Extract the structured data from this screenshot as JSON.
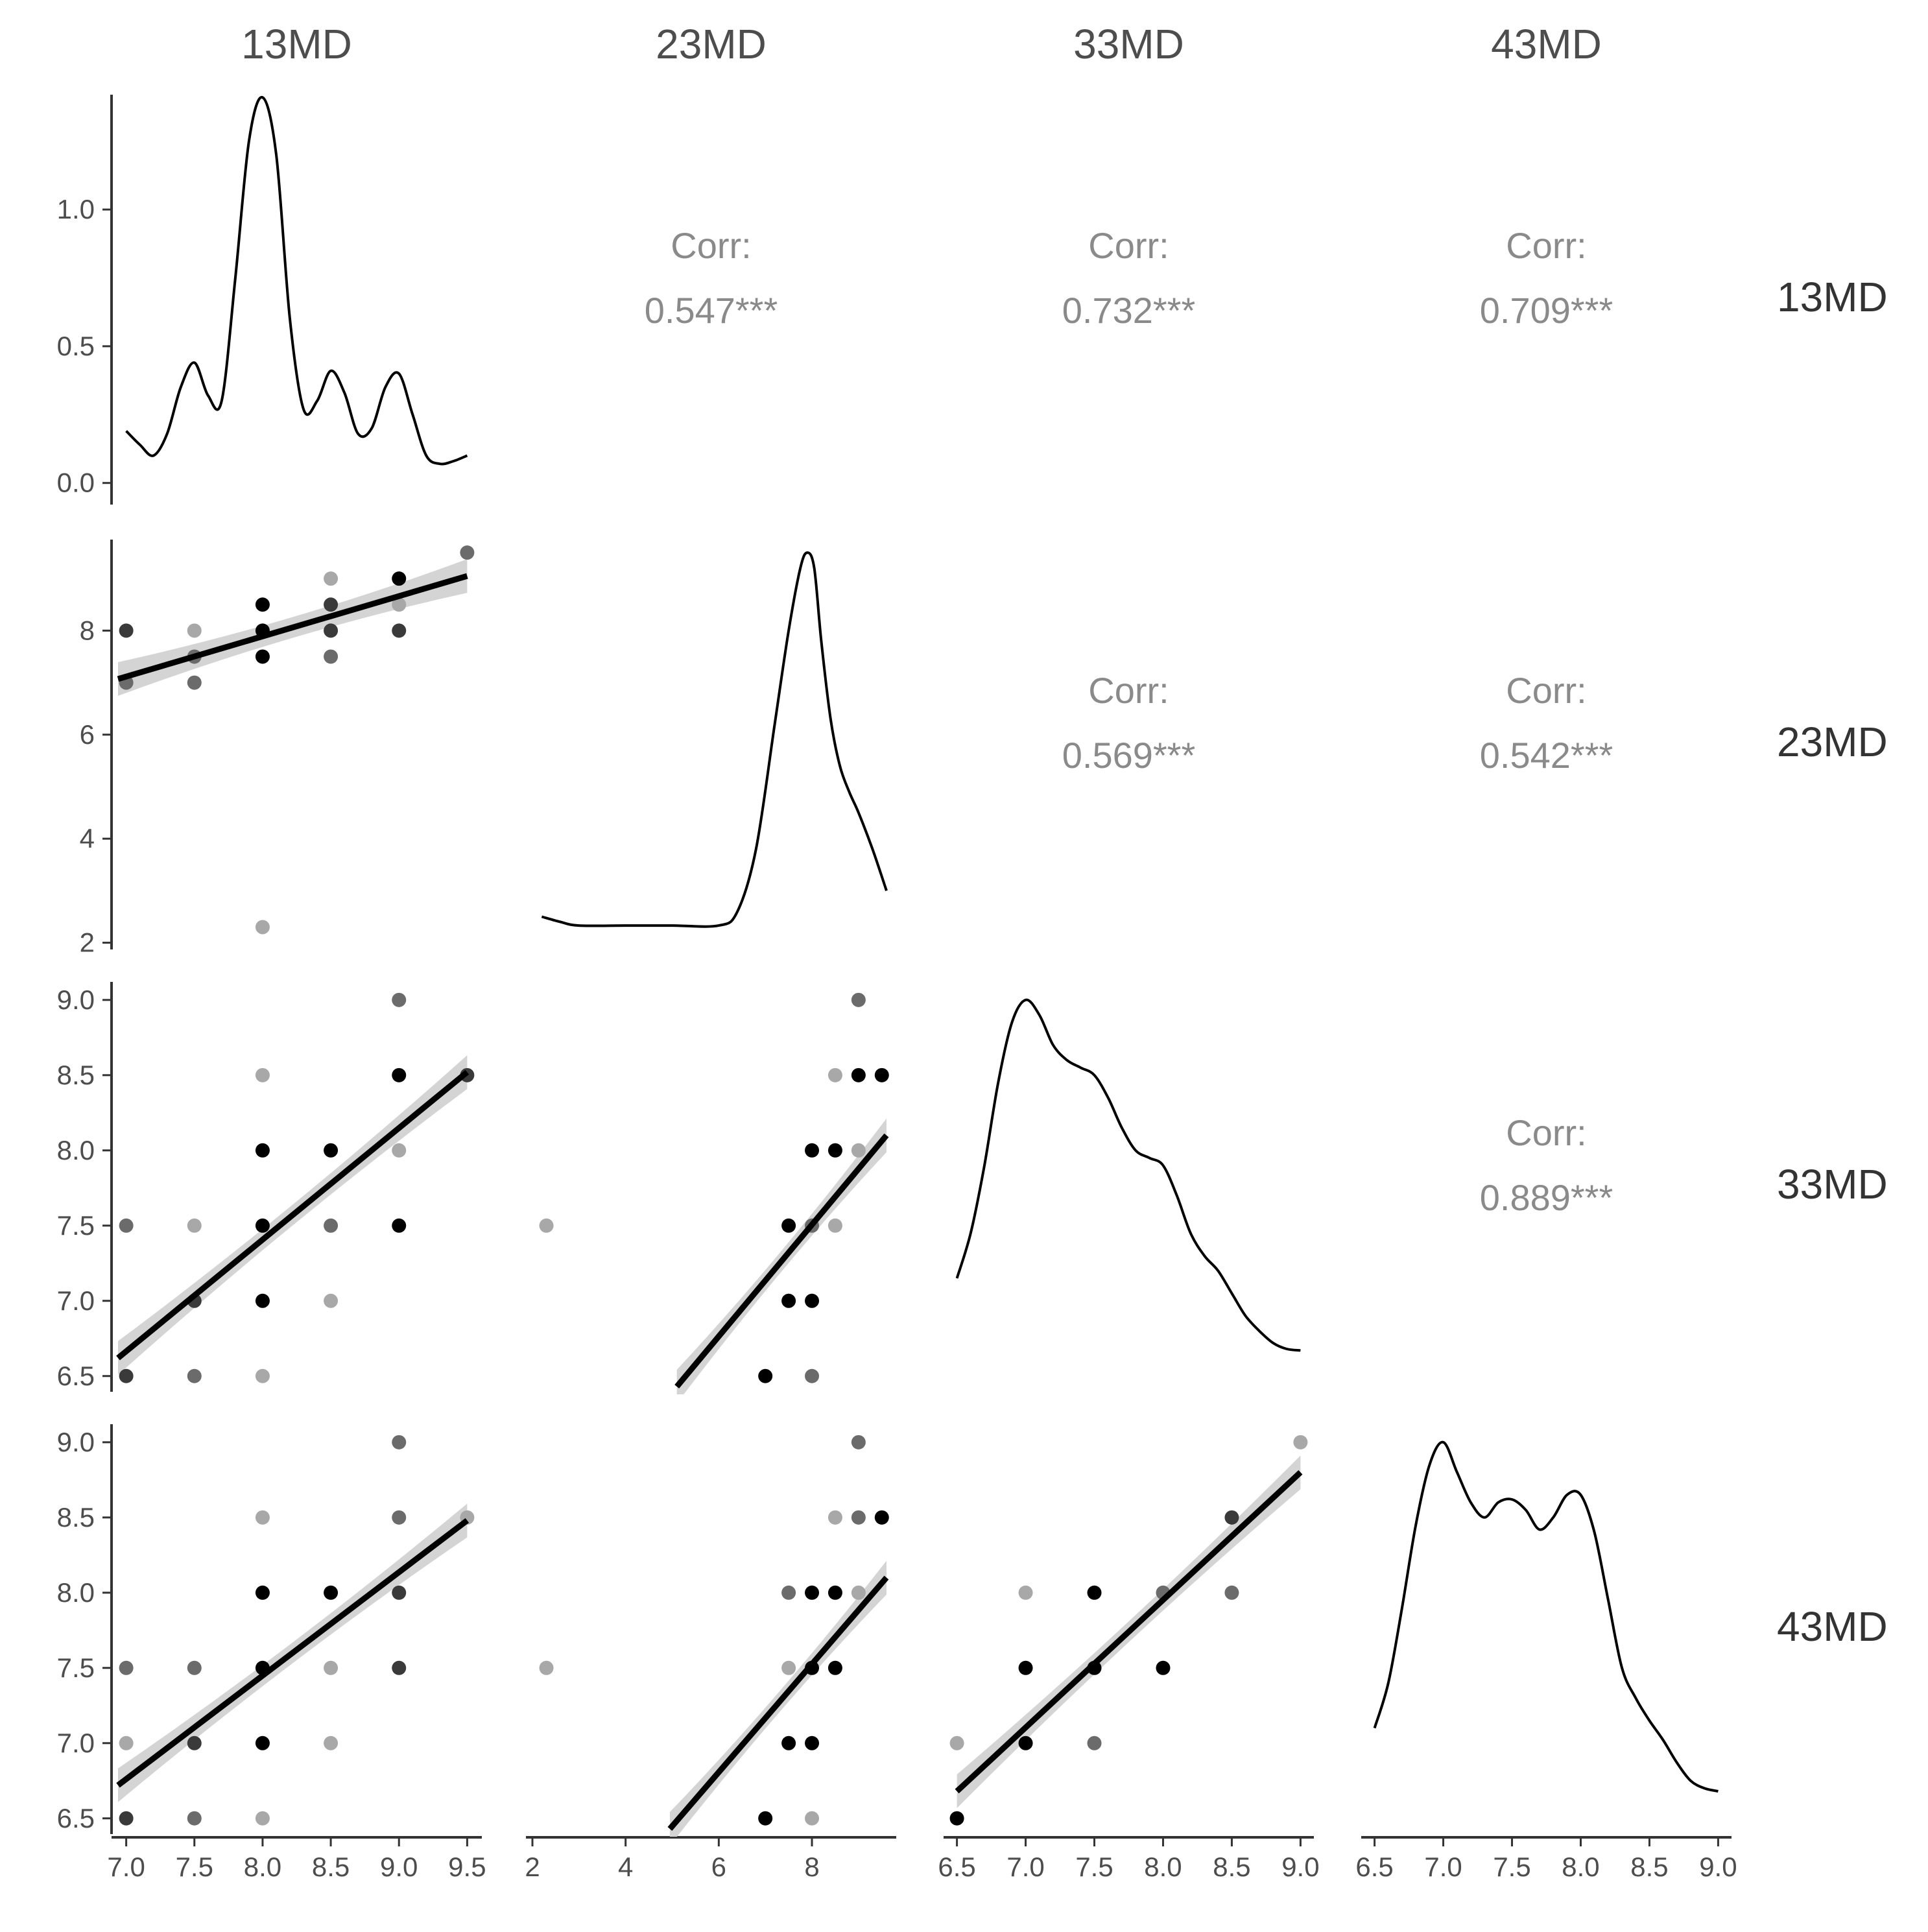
{
  "chart_data": {
    "type": "scatter-matrix",
    "variables": [
      "13MD",
      "23MD",
      "33MD",
      "43MD"
    ],
    "corr_label": "Corr:",
    "colors": {
      "line": "#000000",
      "ribbon": "#d4d4d4",
      "axis": "#333333",
      "text": "#4d4d4d",
      "corr": "#8a8a8a"
    },
    "axes": {
      "x": [
        {
          "range": [
            6.94,
            9.56
          ],
          "ticks": [
            7.0,
            7.5,
            8.0,
            8.5,
            9.0,
            9.5
          ],
          "tick_labels": [
            "7.0",
            "7.5",
            "8.0",
            "8.5",
            "9.0",
            "9.5"
          ]
        },
        {
          "range": [
            2.0,
            9.67
          ],
          "ticks": [
            2,
            4,
            6,
            8
          ],
          "tick_labels": [
            "2",
            "4",
            "6",
            "8"
          ]
        },
        {
          "range": [
            6.45,
            9.05
          ],
          "ticks": [
            6.5,
            7.0,
            7.5,
            8.0,
            8.5,
            9.0
          ],
          "tick_labels": [
            "6.5",
            "7.0",
            "7.5",
            "8.0",
            "8.5",
            "9.0"
          ]
        },
        {
          "range": [
            6.45,
            9.05
          ],
          "ticks": [
            6.5,
            7.0,
            7.5,
            8.0,
            8.5,
            9.0
          ],
          "tick_labels": [
            "6.5",
            "7.0",
            "7.5",
            "8.0",
            "8.5",
            "9.0"
          ]
        }
      ],
      "y": [
        {
          "range": [
            -0.06,
            1.42
          ],
          "ticks": [
            0.0,
            0.5,
            1.0
          ],
          "tick_labels": [
            "0.0",
            "0.5",
            "1.0"
          ]
        },
        {
          "range": [
            1.97,
            9.75
          ],
          "ticks": [
            2,
            4,
            6,
            8
          ],
          "tick_labels": [
            "2",
            "4",
            "6",
            "8"
          ]
        },
        {
          "range": [
            6.43,
            9.12
          ],
          "ticks": [
            6.5,
            7.0,
            7.5,
            8.0,
            8.5,
            9.0
          ],
          "tick_labels": [
            "6.5",
            "7.0",
            "7.5",
            "8.0",
            "8.5",
            "9.0"
          ]
        },
        {
          "range": [
            6.43,
            9.12
          ],
          "ticks": [
            6.5,
            7.0,
            7.5,
            8.0,
            8.5,
            9.0
          ],
          "tick_labels": [
            "6.5",
            "7.0",
            "7.5",
            "8.0",
            "8.5",
            "9.0"
          ]
        }
      ]
    },
    "correlations": [
      {
        "row": 0,
        "col": 1,
        "value": "0.547***"
      },
      {
        "row": 0,
        "col": 2,
        "value": "0.732***"
      },
      {
        "row": 0,
        "col": 3,
        "value": "0.709***"
      },
      {
        "row": 1,
        "col": 2,
        "value": "0.569***"
      },
      {
        "row": 1,
        "col": 3,
        "value": "0.542***"
      },
      {
        "row": 2,
        "col": 3,
        "value": "0.889***"
      }
    ],
    "densities": [
      {
        "var": "13MD",
        "x": [
          7.0,
          7.1,
          7.2,
          7.3,
          7.4,
          7.5,
          7.6,
          7.7,
          7.8,
          7.9,
          8.0,
          8.1,
          8.2,
          8.3,
          8.4,
          8.5,
          8.6,
          8.7,
          8.8,
          8.9,
          9.0,
          9.1,
          9.2,
          9.3,
          9.4,
          9.5
        ],
        "y": [
          0.19,
          0.14,
          0.1,
          0.18,
          0.35,
          0.44,
          0.32,
          0.3,
          0.75,
          1.25,
          1.41,
          1.2,
          0.6,
          0.27,
          0.3,
          0.41,
          0.33,
          0.18,
          0.2,
          0.35,
          0.4,
          0.25,
          0.1,
          0.07,
          0.08,
          0.1
        ]
      },
      {
        "var": "23MD",
        "x": [
          2.2,
          2.6,
          3.0,
          4.0,
          5.0,
          6.0,
          6.4,
          6.8,
          7.2,
          7.5,
          7.75,
          7.9,
          8.05,
          8.2,
          8.4,
          8.6,
          8.8,
          9.0,
          9.3,
          9.6
        ],
        "y": [
          2.5,
          2.4,
          2.33,
          2.33,
          2.33,
          2.33,
          2.6,
          3.8,
          6.2,
          8.0,
          9.2,
          9.5,
          9.2,
          7.8,
          6.3,
          5.4,
          4.9,
          4.5,
          3.8,
          3.0
        ]
      },
      {
        "var": "33MD",
        "x": [
          6.5,
          6.6,
          6.7,
          6.8,
          6.9,
          7.0,
          7.1,
          7.2,
          7.3,
          7.4,
          7.5,
          7.6,
          7.7,
          7.8,
          7.9,
          8.0,
          8.1,
          8.2,
          8.3,
          8.4,
          8.5,
          8.6,
          8.7,
          8.8,
          8.9,
          9.0
        ],
        "y": [
          7.15,
          7.45,
          7.9,
          8.45,
          8.85,
          9.0,
          8.9,
          8.7,
          8.6,
          8.55,
          8.5,
          8.35,
          8.15,
          8.0,
          7.95,
          7.9,
          7.7,
          7.45,
          7.3,
          7.2,
          7.05,
          6.9,
          6.8,
          6.72,
          6.68,
          6.67
        ]
      },
      {
        "var": "43MD",
        "x": [
          6.5,
          6.6,
          6.7,
          6.8,
          6.9,
          7.0,
          7.1,
          7.2,
          7.3,
          7.4,
          7.5,
          7.6,
          7.7,
          7.8,
          7.9,
          8.0,
          8.1,
          8.2,
          8.3,
          8.4,
          8.5,
          8.6,
          8.7,
          8.8,
          8.9,
          9.0
        ],
        "y": [
          7.1,
          7.4,
          7.9,
          8.45,
          8.85,
          9.0,
          8.8,
          8.6,
          8.5,
          8.6,
          8.62,
          8.55,
          8.42,
          8.5,
          8.65,
          8.65,
          8.4,
          7.95,
          7.5,
          7.3,
          7.15,
          7.02,
          6.87,
          6.75,
          6.7,
          6.68
        ]
      }
    ],
    "scatter": [
      {
        "row": 1,
        "col": 0,
        "fit": [
          [
            6.94,
            7.07
          ],
          [
            9.5,
            9.05
          ]
        ],
        "points": [
          [
            7.0,
            8.0,
            "dark"
          ],
          [
            7.0,
            7.0,
            "mid"
          ],
          [
            7.5,
            8.0,
            "light"
          ],
          [
            7.5,
            7.5,
            "mid"
          ],
          [
            7.5,
            7.0,
            "mid"
          ],
          [
            8.0,
            8.5,
            "black"
          ],
          [
            8.0,
            8.0,
            "black"
          ],
          [
            8.0,
            7.5,
            "black"
          ],
          [
            8.0,
            2.3,
            "light"
          ],
          [
            8.5,
            9.0,
            "light"
          ],
          [
            8.5,
            8.5,
            "dark"
          ],
          [
            8.5,
            8.0,
            "dark"
          ],
          [
            8.5,
            7.5,
            "mid"
          ],
          [
            9.0,
            9.0,
            "black"
          ],
          [
            9.0,
            8.5,
            "light"
          ],
          [
            9.0,
            8.0,
            "dark"
          ],
          [
            9.5,
            9.5,
            "mid"
          ]
        ]
      },
      {
        "row": 2,
        "col": 0,
        "fit": [
          [
            6.94,
            6.62
          ],
          [
            9.5,
            8.52
          ]
        ],
        "points": [
          [
            7.0,
            7.5,
            "mid"
          ],
          [
            7.0,
            6.5,
            "dark"
          ],
          [
            7.5,
            7.5,
            "light"
          ],
          [
            7.5,
            7.0,
            "dark"
          ],
          [
            7.5,
            6.5,
            "mid"
          ],
          [
            8.0,
            8.5,
            "light"
          ],
          [
            8.0,
            8.0,
            "black"
          ],
          [
            8.0,
            7.5,
            "black"
          ],
          [
            8.0,
            7.0,
            "black"
          ],
          [
            8.0,
            6.5,
            "light"
          ],
          [
            8.5,
            8.0,
            "black"
          ],
          [
            8.5,
            7.5,
            "mid"
          ],
          [
            8.5,
            7.0,
            "light"
          ],
          [
            9.0,
            9.0,
            "mid"
          ],
          [
            9.0,
            8.5,
            "black"
          ],
          [
            9.0,
            8.0,
            "light"
          ],
          [
            9.0,
            7.5,
            "black"
          ],
          [
            9.5,
            8.5,
            "dark"
          ]
        ]
      },
      {
        "row": 3,
        "col": 0,
        "fit": [
          [
            6.94,
            6.72
          ],
          [
            9.5,
            8.48
          ]
        ],
        "points": [
          [
            7.0,
            7.5,
            "mid"
          ],
          [
            7.0,
            7.0,
            "light"
          ],
          [
            7.0,
            6.5,
            "dark"
          ],
          [
            7.5,
            7.5,
            "mid"
          ],
          [
            7.5,
            7.0,
            "dark"
          ],
          [
            7.5,
            6.5,
            "mid"
          ],
          [
            8.0,
            8.5,
            "light"
          ],
          [
            8.0,
            8.0,
            "black"
          ],
          [
            8.0,
            7.5,
            "black"
          ],
          [
            8.0,
            7.0,
            "black"
          ],
          [
            8.0,
            6.5,
            "light"
          ],
          [
            8.5,
            8.0,
            "black"
          ],
          [
            8.5,
            7.5,
            "light"
          ],
          [
            8.5,
            7.0,
            "light"
          ],
          [
            9.0,
            9.0,
            "mid"
          ],
          [
            9.0,
            8.5,
            "mid"
          ],
          [
            9.0,
            8.0,
            "dark"
          ],
          [
            9.0,
            7.5,
            "dark"
          ],
          [
            9.5,
            8.5,
            "light"
          ]
        ]
      },
      {
        "row": 2,
        "col": 1,
        "fit": [
          [
            5.1,
            6.43
          ],
          [
            9.6,
            8.1
          ]
        ],
        "points": [
          [
            2.3,
            7.5,
            "light"
          ],
          [
            7.0,
            6.5,
            "black"
          ],
          [
            7.5,
            7.5,
            "black"
          ],
          [
            7.5,
            7.0,
            "black"
          ],
          [
            8.0,
            8.0,
            "black"
          ],
          [
            8.0,
            7.5,
            "mid"
          ],
          [
            8.0,
            7.0,
            "black"
          ],
          [
            8.0,
            6.5,
            "mid"
          ],
          [
            8.5,
            8.5,
            "light"
          ],
          [
            8.5,
            8.0,
            "black"
          ],
          [
            8.5,
            7.5,
            "light"
          ],
          [
            9.0,
            9.0,
            "mid"
          ],
          [
            9.0,
            8.5,
            "black"
          ],
          [
            9.0,
            8.0,
            "light"
          ],
          [
            9.5,
            8.5,
            "black"
          ]
        ]
      },
      {
        "row": 3,
        "col": 1,
        "fit": [
          [
            4.95,
            6.43
          ],
          [
            9.6,
            8.1
          ]
        ],
        "points": [
          [
            2.3,
            7.5,
            "light"
          ],
          [
            7.0,
            6.5,
            "black"
          ],
          [
            7.5,
            8.0,
            "mid"
          ],
          [
            7.5,
            7.5,
            "light"
          ],
          [
            7.5,
            7.0,
            "black"
          ],
          [
            8.0,
            8.0,
            "black"
          ],
          [
            8.0,
            7.5,
            "black"
          ],
          [
            8.0,
            7.0,
            "black"
          ],
          [
            8.0,
            6.5,
            "light"
          ],
          [
            8.5,
            8.5,
            "light"
          ],
          [
            8.5,
            8.0,
            "black"
          ],
          [
            8.5,
            7.5,
            "black"
          ],
          [
            9.0,
            9.0,
            "mid"
          ],
          [
            9.0,
            8.5,
            "mid"
          ],
          [
            9.0,
            8.0,
            "light"
          ],
          [
            9.5,
            8.5,
            "black"
          ]
        ]
      },
      {
        "row": 3,
        "col": 2,
        "fit": [
          [
            6.5,
            6.68
          ],
          [
            9.0,
            8.8
          ]
        ],
        "points": [
          [
            6.5,
            7.0,
            "light"
          ],
          [
            6.5,
            6.5,
            "black"
          ],
          [
            7.0,
            8.0,
            "light"
          ],
          [
            7.0,
            7.5,
            "black"
          ],
          [
            7.0,
            7.0,
            "black"
          ],
          [
            7.5,
            8.0,
            "black"
          ],
          [
            7.5,
            7.5,
            "black"
          ],
          [
            7.5,
            7.0,
            "mid"
          ],
          [
            8.0,
            8.0,
            "mid"
          ],
          [
            8.0,
            7.5,
            "black"
          ],
          [
            8.5,
            8.5,
            "dark"
          ],
          [
            8.5,
            8.0,
            "mid"
          ],
          [
            9.0,
            9.0,
            "light"
          ]
        ]
      }
    ]
  }
}
